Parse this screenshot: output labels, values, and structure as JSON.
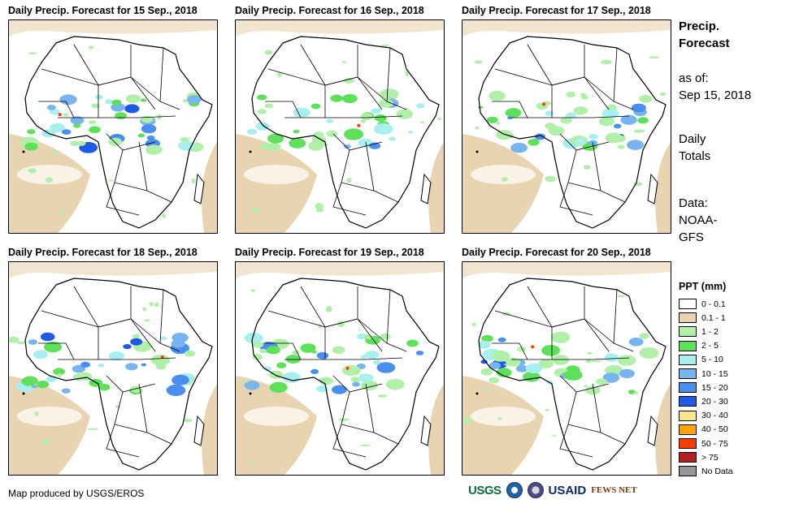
{
  "panels": [
    {
      "title": "Daily Precip. Forecast for 15 Sep., 2018"
    },
    {
      "title": "Daily Precip. Forecast for 16 Sep., 2018"
    },
    {
      "title": "Daily Precip. Forecast for 17 Sep., 2018"
    },
    {
      "title": "Daily Precip. Forecast for 18 Sep., 2018"
    },
    {
      "title": "Daily Precip. Forecast for 19 Sep., 2018"
    },
    {
      "title": "Daily Precip. Forecast for 20 Sep., 2018"
    }
  ],
  "sidebar": {
    "title_line1": "Precip.",
    "title_line2": "Forecast",
    "asof_label": "as of:",
    "asof_date": "Sep 15, 2018",
    "totals_line1": "Daily",
    "totals_line2": "Totals",
    "data_label": "Data:",
    "data_source_line1": "NOAA-",
    "data_source_line2": "GFS"
  },
  "legend": {
    "title": "PPT (mm)",
    "items": [
      {
        "label": "0 - 0.1",
        "color": "#ffffff"
      },
      {
        "label": "0.1 - 1",
        "color": "#e8d4b0"
      },
      {
        "label": "1 - 2",
        "color": "#b0f0a8"
      },
      {
        "label": "2 - 5",
        "color": "#5fe05a"
      },
      {
        "label": "5 - 10",
        "color": "#a8f0f0"
      },
      {
        "label": "10 - 15",
        "color": "#78b4f0"
      },
      {
        "label": "15 - 20",
        "color": "#4a8ef0"
      },
      {
        "label": "20 - 30",
        "color": "#1e5ae6"
      },
      {
        "label": "30 - 40",
        "color": "#ffe88c"
      },
      {
        "label": "40 - 50",
        "color": "#ffa500"
      },
      {
        "label": "50 - 75",
        "color": "#ff3c00"
      },
      {
        "label": "> 75",
        "color": "#b41e1e"
      },
      {
        "label": "No Data",
        "color": "#969696"
      }
    ]
  },
  "footer": {
    "credit": "Map produced by USGS/EROS",
    "logo_usgs": "USGS",
    "logo_usaid": "USAID",
    "logo_fews": "FEWS NET"
  }
}
